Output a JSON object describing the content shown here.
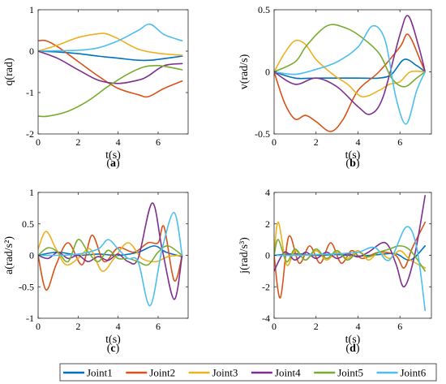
{
  "legend": {
    "entries": [
      {
        "name": "Joint1",
        "color": "#0072BD"
      },
      {
        "name": "Joint2",
        "color": "#D95319"
      },
      {
        "name": "Joint3",
        "color": "#EDB120"
      },
      {
        "name": "Joint4",
        "color": "#7E2F8E"
      },
      {
        "name": "Joint5",
        "color": "#77AC30"
      },
      {
        "name": "Joint6",
        "color": "#4DBEEE"
      }
    ],
    "placement": "bottom-center"
  },
  "chart_data": [
    {
      "type": "line",
      "panel_label": "(a)",
      "xlabel": "t(s)",
      "ylabel": "q(rad)",
      "xlim": [
        0,
        7.5
      ],
      "ylim": [
        -2,
        1
      ],
      "xticks": [
        0,
        2,
        4,
        6
      ],
      "yticks": [
        -2,
        -1,
        0,
        1
      ],
      "series": [
        {
          "name": "Joint1",
          "x": [
            0,
            1,
            2,
            3,
            4,
            5,
            5.6,
            6.3,
            7.2
          ],
          "y": [
            0,
            -0.02,
            -0.06,
            -0.12,
            -0.17,
            -0.22,
            -0.22,
            -0.18,
            -0.12
          ]
        },
        {
          "name": "Joint2",
          "x": [
            0,
            0.4,
            1,
            2,
            3,
            4,
            5,
            5.5,
            6.3,
            7.2
          ],
          "y": [
            0.25,
            0.25,
            0.1,
            -0.25,
            -0.6,
            -0.9,
            -1.05,
            -1.1,
            -0.9,
            -0.72
          ]
        },
        {
          "name": "Joint3",
          "x": [
            0,
            1,
            2,
            3,
            3.4,
            4,
            5,
            6,
            7.2
          ],
          "y": [
            0,
            0.15,
            0.33,
            0.42,
            0.42,
            0.3,
            0.05,
            -0.05,
            -0.1
          ]
        },
        {
          "name": "Joint4",
          "x": [
            0,
            1,
            2,
            3,
            4,
            5,
            5.5,
            6.3,
            7.2
          ],
          "y": [
            0,
            -0.18,
            -0.45,
            -0.7,
            -0.78,
            -0.7,
            -0.6,
            -0.35,
            -0.3
          ]
        },
        {
          "name": "Joint5",
          "x": [
            0,
            0.5,
            1.5,
            2.5,
            3.5,
            4.5,
            5.3,
            6,
            6.7,
            7.2
          ],
          "y": [
            -1.57,
            -1.57,
            -1.45,
            -1.2,
            -0.85,
            -0.55,
            -0.38,
            -0.35,
            -0.4,
            -0.45
          ]
        },
        {
          "name": "Joint6",
          "x": [
            0,
            1,
            2,
            3,
            4,
            5,
            5.6,
            6.3,
            7.2
          ],
          "y": [
            0,
            0.01,
            0.02,
            0.08,
            0.25,
            0.5,
            0.65,
            0.4,
            0.25
          ]
        }
      ]
    },
    {
      "type": "line",
      "panel_label": "(b)",
      "xlabel": "t(s)",
      "ylabel": "v(rad/s)",
      "xlim": [
        0,
        7.5
      ],
      "ylim": [
        -0.5,
        0.5
      ],
      "xticks": [
        0,
        2,
        4,
        6
      ],
      "yticks": [
        -0.5,
        0,
        0.5
      ],
      "series": [
        {
          "name": "Joint1",
          "x": [
            0,
            1,
            2,
            3,
            4,
            5,
            5.6,
            6.2,
            6.8,
            7.2
          ],
          "y": [
            0,
            -0.05,
            -0.05,
            -0.05,
            -0.05,
            -0.05,
            -0.02,
            0.1,
            0.05,
            0
          ]
        },
        {
          "name": "Joint2",
          "x": [
            0,
            0.5,
            1,
            1.5,
            2,
            2.7,
            3.3,
            4,
            5,
            6,
            6.4,
            7,
            7.2
          ],
          "y": [
            0,
            -0.25,
            -0.38,
            -0.35,
            -0.4,
            -0.48,
            -0.38,
            -0.15,
            0,
            0.2,
            0.3,
            0.08,
            0
          ]
        },
        {
          "name": "Joint3",
          "x": [
            0,
            0.5,
            1,
            1.5,
            2,
            2.8,
            3.5,
            4.2,
            5,
            5.5,
            6,
            6.5,
            7.2
          ],
          "y": [
            0,
            0.15,
            0.25,
            0.22,
            0.1,
            -0.02,
            -0.1,
            -0.2,
            -0.15,
            -0.1,
            -0.08,
            0,
            0
          ]
        },
        {
          "name": "Joint4",
          "x": [
            0,
            1,
            2,
            3,
            4,
            4.6,
            5.2,
            6,
            6.4,
            6.9,
            7.2
          ],
          "y": [
            0,
            -0.1,
            -0.05,
            -0.12,
            -0.28,
            -0.34,
            -0.2,
            0.3,
            0.45,
            0.2,
            0
          ]
        },
        {
          "name": "Joint5",
          "x": [
            0,
            1,
            1.5,
            2.2,
            2.7,
            3.3,
            4,
            5,
            5.6,
            6.2,
            6.8,
            7.2
          ],
          "y": [
            0,
            0.08,
            0.2,
            0.33,
            0.38,
            0.36,
            0.3,
            0.15,
            -0.05,
            -0.12,
            -0.05,
            0
          ]
        },
        {
          "name": "Joint6",
          "x": [
            0,
            1,
            2,
            3,
            4,
            4.7,
            5.3,
            5.8,
            6.3,
            6.8,
            7.2
          ],
          "y": [
            0,
            -0.02,
            0.02,
            0.08,
            0.2,
            0.37,
            0.25,
            -0.2,
            -0.42,
            -0.15,
            0
          ]
        }
      ]
    },
    {
      "type": "line",
      "panel_label": "(c)",
      "xlabel": "t(s)",
      "ylabel": "a(rad/s²)",
      "xlim": [
        0,
        7.5
      ],
      "ylim": [
        -1,
        1
      ],
      "xticks": [
        0,
        2,
        4,
        6
      ],
      "yticks": [
        -1,
        -0.5,
        0,
        0.5,
        1
      ],
      "series": [
        {
          "name": "Joint1",
          "x": [
            0,
            1,
            2,
            3,
            4,
            5,
            5.8,
            6.4,
            7.2
          ],
          "y": [
            0,
            0.05,
            0,
            0.02,
            0,
            0.05,
            0.15,
            0.05,
            -0.02
          ]
        },
        {
          "name": "Joint2",
          "x": [
            0,
            0.4,
            0.9,
            1.5,
            2.2,
            2.7,
            3.3,
            4,
            4.8,
            5.5,
            6,
            6.3,
            6.8,
            7.2
          ],
          "y": [
            0,
            -0.55,
            -0.15,
            0.2,
            -0.15,
            0.32,
            -0.1,
            0.12,
            0.05,
            0.2,
            0.2,
            0.45,
            -0.4,
            0
          ]
        },
        {
          "name": "Joint3",
          "x": [
            0,
            0.4,
            0.9,
            1.4,
            2,
            2.6,
            3.2,
            3.8,
            4.5,
            5.2,
            5.9,
            6.5,
            7.2
          ],
          "y": [
            0.1,
            0.38,
            0.1,
            -0.15,
            -0.05,
            0.1,
            -0.25,
            -0.05,
            0.2,
            -0.05,
            -0.1,
            -0.02,
            0
          ]
        },
        {
          "name": "Joint4",
          "x": [
            0,
            0.5,
            1,
            1.5,
            2,
            2.5,
            3,
            3.5,
            4,
            4.5,
            5,
            5.7,
            6.2,
            6.8,
            7.2
          ],
          "y": [
            0,
            -0.05,
            0.05,
            -0.05,
            0,
            -0.1,
            -0.02,
            -0.08,
            0.02,
            -0.1,
            -0.05,
            0.83,
            0.1,
            -0.7,
            0
          ]
        },
        {
          "name": "Joint5",
          "x": [
            0,
            0.5,
            1,
            1.5,
            2,
            2.5,
            3,
            3.5,
            4,
            4.5,
            5,
            5.5,
            6,
            6.5,
            7.2
          ],
          "y": [
            0,
            0.12,
            0.05,
            -0.1,
            0.25,
            0.05,
            -0.1,
            0.08,
            -0.05,
            -0.05,
            -0.1,
            -0.15,
            0.05,
            0.15,
            0
          ]
        },
        {
          "name": "Joint6",
          "x": [
            0,
            1,
            2,
            3,
            3.5,
            4,
            4.5,
            5,
            5.6,
            6.2,
            6.8,
            7.2
          ],
          "y": [
            0,
            0,
            0.02,
            0.1,
            0.25,
            0.1,
            -0.05,
            -0.1,
            -0.8,
            0.1,
            0.68,
            0
          ]
        }
      ]
    },
    {
      "type": "line",
      "panel_label": "(d)",
      "xlabel": "t(s)",
      "ylabel": "j(rad/s³)",
      "xlim": [
        0,
        7.5
      ],
      "ylim": [
        -4,
        4
      ],
      "xticks": [
        0,
        2,
        4,
        6
      ],
      "yticks": [
        -4,
        -2,
        0,
        2,
        4
      ],
      "series": [
        {
          "name": "Joint1",
          "x": [
            0,
            1,
            2,
            3,
            4,
            5,
            5.8,
            6.5,
            7.2
          ],
          "y": [
            0,
            0.1,
            0,
            0.05,
            -0.05,
            0.05,
            0.1,
            -0.3,
            0.6
          ]
        },
        {
          "name": "Joint2",
          "x": [
            0,
            0.3,
            0.7,
            1.2,
            1.7,
            2.2,
            2.7,
            3.2,
            3.7,
            4.2,
            5,
            5.8,
            6.2,
            6.6,
            7.2
          ],
          "y": [
            0,
            -2.7,
            1.2,
            -0.5,
            0.6,
            -0.5,
            0.8,
            -0.5,
            0.3,
            -0.2,
            0.2,
            0,
            -0.8,
            0.5,
            2.1
          ]
        },
        {
          "name": "Joint3",
          "x": [
            0,
            0.2,
            0.6,
            1,
            1.5,
            2,
            2.5,
            3,
            3.5,
            4,
            4.5,
            5,
            5.5,
            6,
            6.5,
            7.2
          ],
          "y": [
            0,
            2.1,
            -0.6,
            0.3,
            -0.3,
            0.3,
            -0.3,
            0.2,
            -0.2,
            0.3,
            -0.3,
            0.2,
            -0.2,
            0.3,
            -0.3,
            -0.8
          ]
        },
        {
          "name": "Joint4",
          "x": [
            0,
            0.5,
            1,
            1.5,
            2,
            2.5,
            3,
            3.5,
            4,
            4.5,
            5.3,
            5.8,
            6.2,
            6.7,
            7.2
          ],
          "y": [
            -1,
            0.2,
            -0.3,
            0.2,
            -0.2,
            0.2,
            -0.2,
            0.1,
            -0.1,
            0.2,
            0.8,
            -0.5,
            -2.0,
            0,
            3.8
          ]
        },
        {
          "name": "Joint5",
          "x": [
            0,
            0.2,
            0.6,
            1,
            1.5,
            2,
            2.5,
            3,
            3.5,
            4,
            4.5,
            5,
            5.5,
            6,
            6.5,
            7.2
          ],
          "y": [
            0,
            1.0,
            -0.4,
            0.4,
            -0.3,
            0.4,
            -0.2,
            0.3,
            -0.3,
            0.2,
            -0.1,
            0.2,
            0.4,
            0.6,
            0.3,
            -1.0
          ]
        },
        {
          "name": "Joint6",
          "x": [
            0,
            1,
            2,
            3,
            4,
            4.8,
            5.5,
            6.3,
            6.8,
            7.2
          ],
          "y": [
            0,
            0,
            0.05,
            0.1,
            0.2,
            0.5,
            -0.3,
            1.8,
            0.5,
            -3.5
          ]
        }
      ]
    }
  ]
}
